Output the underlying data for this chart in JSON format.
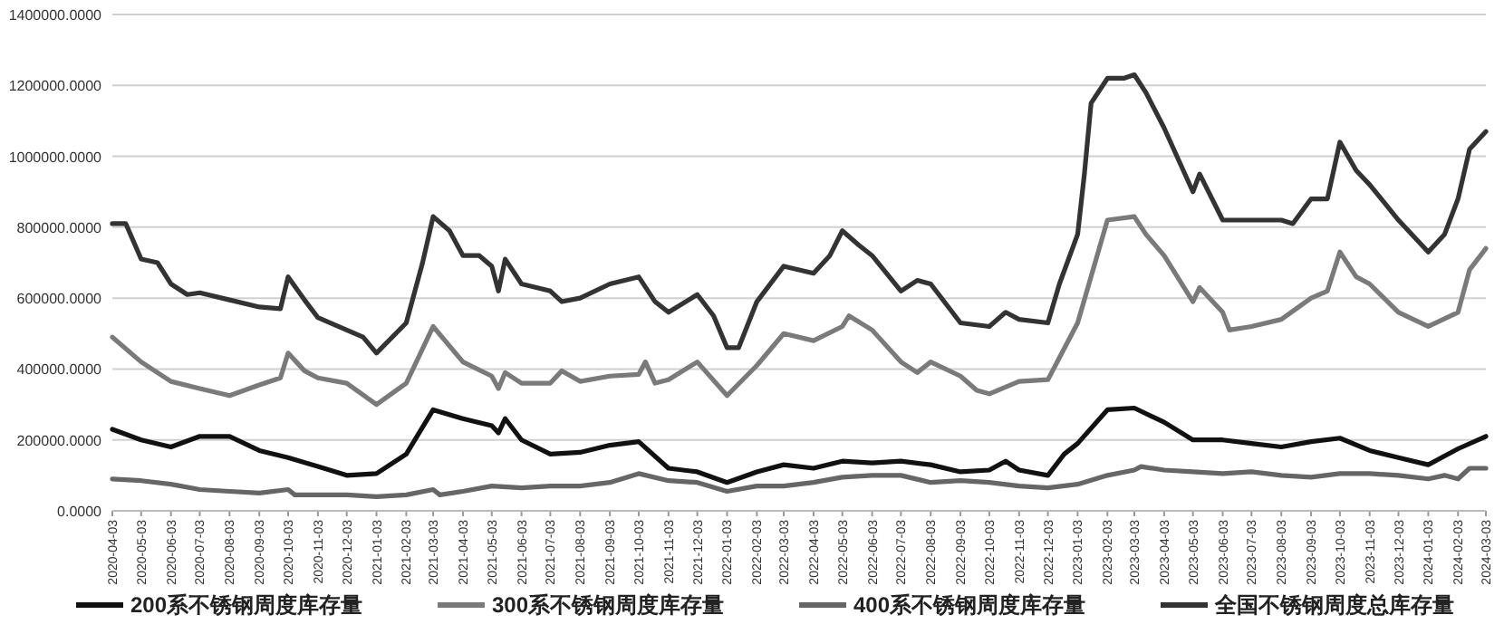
{
  "chart_data": {
    "type": "line",
    "legend": "bottom",
    "grid": "y",
    "line_style": "solid",
    "marker": "none",
    "ylim": [
      0,
      1400000
    ],
    "yticks": [
      {
        "value": 0,
        "label": "0.0000"
      },
      {
        "value": 200000,
        "label": "200000.0000"
      },
      {
        "value": 400000,
        "label": "400000.0000"
      },
      {
        "value": 600000,
        "label": "600000.0000"
      },
      {
        "value": 800000,
        "label": "800000.0000"
      },
      {
        "value": 1000000,
        "label": "1000000.0000"
      },
      {
        "value": 1200000,
        "label": "1200000.0000"
      },
      {
        "value": 1400000,
        "label": "1400000.0000"
      }
    ],
    "xlim": [
      "2020-04-03",
      "2024-03-03"
    ],
    "xticks": [
      "2020-04-03",
      "2020-05-03",
      "2020-06-03",
      "2020-07-03",
      "2020-08-03",
      "2020-09-03",
      "2020-10-03",
      "2020-11-03",
      "2020-12-03",
      "2021-01-03",
      "2021-02-03",
      "2021-03-03",
      "2021-04-03",
      "2021-05-03",
      "2021-06-03",
      "2021-07-03",
      "2021-08-03",
      "2021-09-03",
      "2021-10-03",
      "2021-11-03",
      "2021-12-03",
      "2022-01-03",
      "2022-02-03",
      "2022-03-03",
      "2022-04-03",
      "2022-05-03",
      "2022-06-03",
      "2022-07-03",
      "2022-08-03",
      "2022-09-03",
      "2022-10-03",
      "2022-11-03",
      "2022-12-03",
      "2023-01-03",
      "2023-02-03",
      "2023-03-03",
      "2023-04-03",
      "2023-05-03",
      "2023-06-03",
      "2023-07-03",
      "2023-08-03",
      "2023-09-03",
      "2023-10-03",
      "2023-11-03",
      "2023-12-03",
      "2024-01-03",
      "2024-02-03",
      "2024-03-03"
    ],
    "series": [
      {
        "name": "200系不锈钢周度库存量",
        "color": "#111111",
        "x": [
          "2020-04-03",
          "2020-05-03",
          "2020-06-03",
          "2020-07-03",
          "2020-08-03",
          "2020-09-03",
          "2020-10-03",
          "2020-11-03",
          "2020-12-03",
          "2021-01-03",
          "2021-02-03",
          "2021-03-03",
          "2021-04-03",
          "2021-05-03",
          "2021-05-10",
          "2021-05-17",
          "2021-06-03",
          "2021-07-03",
          "2021-08-03",
          "2021-09-03",
          "2021-10-03",
          "2021-11-03",
          "2021-12-03",
          "2022-01-03",
          "2022-02-03",
          "2022-03-03",
          "2022-04-03",
          "2022-05-03",
          "2022-06-03",
          "2022-07-03",
          "2022-08-03",
          "2022-09-03",
          "2022-10-03",
          "2022-10-20",
          "2022-11-03",
          "2022-12-03",
          "2022-12-20",
          "2023-01-03",
          "2023-02-03",
          "2023-03-03",
          "2023-04-03",
          "2023-05-03",
          "2023-06-03",
          "2023-07-03",
          "2023-08-03",
          "2023-09-03",
          "2023-10-03",
          "2023-11-03",
          "2023-12-03",
          "2024-01-03",
          "2024-02-03",
          "2024-03-03"
        ],
        "values": [
          230000,
          200000,
          180000,
          210000,
          210000,
          170000,
          150000,
          125000,
          100000,
          105000,
          160000,
          285000,
          260000,
          240000,
          220000,
          260000,
          200000,
          160000,
          165000,
          185000,
          195000,
          120000,
          110000,
          80000,
          110000,
          130000,
          120000,
          140000,
          135000,
          140000,
          130000,
          110000,
          115000,
          140000,
          115000,
          100000,
          160000,
          190000,
          285000,
          290000,
          250000,
          200000,
          200000,
          190000,
          180000,
          195000,
          205000,
          170000,
          150000,
          130000,
          175000,
          210000
        ]
      },
      {
        "name": "300系不锈钢周度库存量",
        "color": "#7a7a7a",
        "x": [
          "2020-04-03",
          "2020-05-03",
          "2020-06-03",
          "2020-07-03",
          "2020-08-03",
          "2020-09-03",
          "2020-09-25",
          "2020-10-03",
          "2020-10-20",
          "2020-11-03",
          "2020-12-03",
          "2021-01-03",
          "2021-02-03",
          "2021-03-03",
          "2021-04-03",
          "2021-05-03",
          "2021-05-10",
          "2021-05-17",
          "2021-06-03",
          "2021-07-03",
          "2021-07-15",
          "2021-08-03",
          "2021-09-03",
          "2021-10-03",
          "2021-10-10",
          "2021-10-20",
          "2021-11-03",
          "2021-12-03",
          "2022-01-03",
          "2022-02-03",
          "2022-03-03",
          "2022-04-03",
          "2022-05-03",
          "2022-05-10",
          "2022-06-03",
          "2022-07-03",
          "2022-07-20",
          "2022-08-03",
          "2022-09-03",
          "2022-09-20",
          "2022-10-03",
          "2022-11-03",
          "2022-12-03",
          "2023-01-03",
          "2023-02-03",
          "2023-03-03",
          "2023-03-15",
          "2023-04-03",
          "2023-05-03",
          "2023-05-10",
          "2023-06-03",
          "2023-06-10",
          "2023-07-03",
          "2023-08-03",
          "2023-09-03",
          "2023-09-20",
          "2023-10-03",
          "2023-10-20",
          "2023-11-03",
          "2023-12-03",
          "2024-01-03",
          "2024-02-03",
          "2024-02-15",
          "2024-03-03"
        ],
        "values": [
          490000,
          420000,
          365000,
          345000,
          325000,
          355000,
          375000,
          445000,
          395000,
          375000,
          360000,
          300000,
          360000,
          520000,
          420000,
          380000,
          345000,
          390000,
          360000,
          360000,
          395000,
          365000,
          380000,
          385000,
          420000,
          360000,
          370000,
          420000,
          325000,
          410000,
          500000,
          480000,
          520000,
          550000,
          510000,
          420000,
          390000,
          420000,
          380000,
          340000,
          330000,
          365000,
          370000,
          530000,
          820000,
          830000,
          780000,
          720000,
          590000,
          630000,
          560000,
          510000,
          520000,
          540000,
          600000,
          620000,
          730000,
          660000,
          640000,
          560000,
          520000,
          560000,
          680000,
          740000
        ]
      },
      {
        "name": "400系不锈钢周度库存量",
        "color": "#666666",
        "x": [
          "2020-04-03",
          "2020-05-03",
          "2020-06-03",
          "2020-07-03",
          "2020-08-03",
          "2020-09-03",
          "2020-10-03",
          "2020-10-10",
          "2020-11-03",
          "2020-12-03",
          "2021-01-03",
          "2021-02-03",
          "2021-03-03",
          "2021-03-10",
          "2021-04-03",
          "2021-05-03",
          "2021-06-03",
          "2021-07-03",
          "2021-08-03",
          "2021-09-03",
          "2021-10-03",
          "2021-11-03",
          "2021-12-03",
          "2022-01-03",
          "2022-02-03",
          "2022-03-03",
          "2022-04-03",
          "2022-05-03",
          "2022-06-03",
          "2022-07-03",
          "2022-08-03",
          "2022-09-03",
          "2022-10-03",
          "2022-11-03",
          "2022-12-03",
          "2023-01-03",
          "2023-02-03",
          "2023-03-03",
          "2023-03-10",
          "2023-04-03",
          "2023-05-03",
          "2023-06-03",
          "2023-07-03",
          "2023-08-03",
          "2023-09-03",
          "2023-10-03",
          "2023-11-03",
          "2023-12-03",
          "2024-01-03",
          "2024-01-20",
          "2024-02-03",
          "2024-02-15",
          "2024-03-03"
        ],
        "values": [
          90000,
          85000,
          75000,
          60000,
          55000,
          50000,
          60000,
          45000,
          45000,
          45000,
          40000,
          45000,
          60000,
          45000,
          55000,
          70000,
          65000,
          70000,
          70000,
          80000,
          105000,
          85000,
          80000,
          55000,
          70000,
          70000,
          80000,
          95000,
          100000,
          100000,
          80000,
          85000,
          80000,
          70000,
          65000,
          75000,
          100000,
          115000,
          125000,
          115000,
          110000,
          105000,
          110000,
          100000,
          95000,
          105000,
          105000,
          100000,
          90000,
          100000,
          90000,
          120000,
          120000
        ]
      },
      {
        "name": "全国不锈钢周度总库存量",
        "color": "#333333",
        "x": [
          "2020-04-03",
          "2020-04-17",
          "2020-05-03",
          "2020-05-20",
          "2020-06-03",
          "2020-06-20",
          "2020-07-03",
          "2020-08-03",
          "2020-09-03",
          "2020-09-25",
          "2020-10-03",
          "2020-10-20",
          "2020-11-03",
          "2020-12-03",
          "2020-12-20",
          "2021-01-03",
          "2021-02-03",
          "2021-02-20",
          "2021-03-03",
          "2021-03-20",
          "2021-04-03",
          "2021-04-20",
          "2021-05-03",
          "2021-05-10",
          "2021-05-17",
          "2021-06-03",
          "2021-07-03",
          "2021-07-15",
          "2021-08-03",
          "2021-09-03",
          "2021-10-03",
          "2021-10-20",
          "2021-11-03",
          "2021-12-03",
          "2021-12-20",
          "2022-01-03",
          "2022-01-15",
          "2022-02-03",
          "2022-03-03",
          "2022-04-03",
          "2022-04-20",
          "2022-05-03",
          "2022-05-20",
          "2022-06-03",
          "2022-07-03",
          "2022-07-20",
          "2022-08-03",
          "2022-09-03",
          "2022-10-03",
          "2022-10-20",
          "2022-11-03",
          "2022-12-03",
          "2022-12-15",
          "2023-01-03",
          "2023-01-10",
          "2023-01-17",
          "2023-02-03",
          "2023-02-20",
          "2023-03-03",
          "2023-03-15",
          "2023-04-03",
          "2023-05-03",
          "2023-05-10",
          "2023-06-03",
          "2023-07-03",
          "2023-08-03",
          "2023-08-15",
          "2023-09-03",
          "2023-09-20",
          "2023-10-03",
          "2023-10-20",
          "2023-11-03",
          "2023-12-03",
          "2024-01-03",
          "2024-01-20",
          "2024-02-03",
          "2024-02-15",
          "2024-03-03"
        ],
        "values": [
          810000,
          810000,
          710000,
          700000,
          640000,
          610000,
          615000,
          595000,
          575000,
          570000,
          660000,
          595000,
          545000,
          510000,
          490000,
          445000,
          530000,
          700000,
          830000,
          790000,
          720000,
          720000,
          690000,
          620000,
          710000,
          640000,
          620000,
          590000,
          600000,
          640000,
          660000,
          590000,
          560000,
          610000,
          550000,
          460000,
          460000,
          590000,
          690000,
          670000,
          720000,
          790000,
          750000,
          720000,
          620000,
          650000,
          640000,
          530000,
          520000,
          560000,
          540000,
          530000,
          640000,
          780000,
          950000,
          1150000,
          1220000,
          1220000,
          1230000,
          1180000,
          1080000,
          900000,
          950000,
          820000,
          820000,
          820000,
          810000,
          880000,
          880000,
          1040000,
          960000,
          920000,
          820000,
          730000,
          780000,
          880000,
          1020000,
          1070000
        ]
      }
    ]
  }
}
